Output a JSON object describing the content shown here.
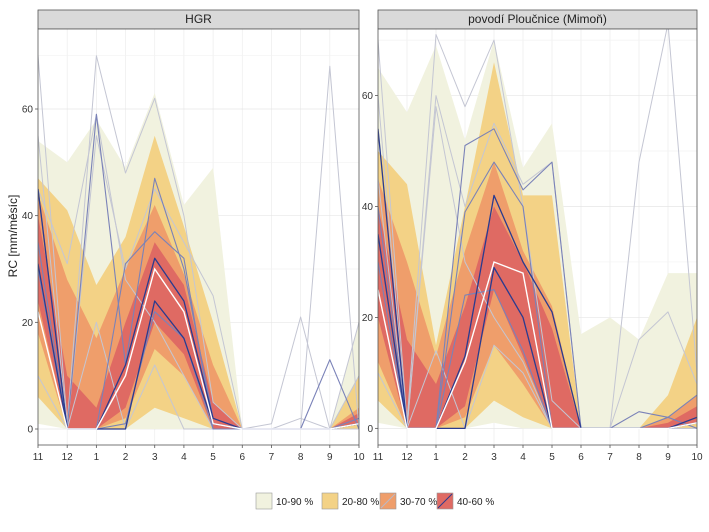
{
  "chart_data": {
    "type": "area",
    "ylabel": "RC [mm/měsíc]",
    "xlabel": "",
    "x_categories": [
      "11",
      "12",
      "1",
      "2",
      "3",
      "4",
      "5",
      "6",
      "7",
      "8",
      "9",
      "10"
    ],
    "legend": {
      "position": "bottom",
      "entries": [
        {
          "label": "10-90 %",
          "color": "#f1f2df"
        },
        {
          "label": "20-80 %",
          "color": "#f3d286"
        },
        {
          "label": "30-70 %",
          "color": "#ef9e6b"
        },
        {
          "label": "40-60 %",
          "color": "#df6a63"
        }
      ]
    },
    "colors": {
      "band_10_90": "#f1f2df",
      "band_20_80": "#f3d286",
      "band_30_70": "#ef9e6b",
      "band_40_60": "#df6a63",
      "strip_fill": "#d9d9d9",
      "median_line": "#ffffff",
      "gray_line": "#c4c6d3",
      "blue_line": "#7a82b8",
      "navy_line": "#2a3b8f"
    },
    "panels": [
      {
        "title": "HGR",
        "ylim": [
          -3,
          75
        ],
        "yticks": [
          0,
          20,
          40,
          60
        ],
        "bands": {
          "p10": [
            1,
            0,
            0,
            0,
            0,
            0,
            0,
            0,
            0,
            0,
            0,
            0
          ],
          "p90": [
            54,
            50,
            58,
            49,
            63,
            42,
            49,
            0,
            0,
            0,
            0,
            20
          ],
          "p20": [
            6,
            0,
            0,
            0,
            4,
            2,
            0,
            0,
            0,
            0,
            0,
            0
          ],
          "p80": [
            47,
            41,
            27,
            36,
            55,
            38,
            20,
            0,
            0,
            0,
            0,
            10
          ],
          "p30": [
            18,
            0,
            0,
            2,
            15,
            10,
            0,
            0,
            0,
            0,
            0,
            1
          ],
          "p70": [
            44,
            28,
            17,
            30,
            42,
            29,
            12,
            0,
            0,
            0,
            0,
            4
          ],
          "p40": [
            24,
            0,
            0,
            4,
            20,
            14,
            0,
            0,
            0,
            0,
            0,
            1
          ],
          "p60": [
            40,
            10,
            4,
            20,
            35,
            27,
            5,
            0,
            0,
            0,
            0,
            3
          ]
        },
        "median": [
          22,
          0,
          0,
          10,
          30,
          22,
          1,
          0,
          0,
          0,
          0,
          1
        ],
        "traces": [
          {
            "style": "gray",
            "values": [
              70,
              1,
              70,
              48,
              62,
              40,
              5,
              0,
              0,
              0,
              68,
              0
            ]
          },
          {
            "style": "gray",
            "values": [
              55,
              0,
              55,
              30,
              45,
              35,
              25,
              0,
              0,
              0,
              0,
              0
            ]
          },
          {
            "style": "gray",
            "values": [
              45,
              31,
              59,
              28,
              20,
              10,
              0,
              0,
              1,
              21,
              0,
              20
            ]
          },
          {
            "style": "gray",
            "values": [
              10,
              0,
              20,
              0,
              12,
              0,
              0,
              0,
              0,
              2,
              0,
              10
            ]
          },
          {
            "style": "blue",
            "values": [
              35,
              0,
              59,
              12,
              47,
              30,
              2,
              0,
              0,
              0,
              13,
              0
            ]
          },
          {
            "style": "blue",
            "values": [
              30,
              0,
              0,
              31,
              37,
              32,
              0,
              0,
              0,
              0,
              0,
              2
            ]
          },
          {
            "style": "blue",
            "values": [
              45,
              0,
              0,
              1,
              22,
              17,
              0,
              0,
              0,
              0,
              0,
              1
            ]
          },
          {
            "style": "navy",
            "values": [
              45,
              0,
              0,
              12,
              32,
              24,
              2,
              0,
              0,
              0,
              0,
              1
            ]
          },
          {
            "style": "navy",
            "values": [
              31,
              0,
              0,
              0,
              24,
              17,
              1,
              0,
              0,
              0,
              0,
              1
            ]
          }
        ]
      },
      {
        "title": "povodí Ploučnice (Mimoň)",
        "ylim": [
          -3,
          72
        ],
        "yticks": [
          0,
          20,
          40,
          60
        ],
        "bands": {
          "p10": [
            1,
            0,
            0,
            0,
            1,
            0,
            0,
            0,
            0,
            0,
            0,
            0
          ],
          "p90": [
            65,
            57,
            69,
            52,
            70,
            47,
            55,
            17,
            20,
            16,
            28,
            28
          ],
          "p20": [
            5,
            0,
            0,
            0,
            5,
            2,
            0,
            0,
            0,
            0,
            0,
            0
          ],
          "p80": [
            50,
            44,
            15,
            40,
            66,
            42,
            42,
            0,
            0,
            0,
            6,
            20
          ],
          "p30": [
            12,
            0,
            0,
            2,
            15,
            8,
            0,
            0,
            0,
            0,
            0,
            2
          ],
          "p70": [
            45,
            30,
            13,
            32,
            48,
            32,
            22,
            0,
            0,
            0,
            2,
            6
          ],
          "p40": [
            20,
            0,
            0,
            4,
            25,
            13,
            0,
            0,
            0,
            0,
            0,
            1
          ],
          "p60": [
            40,
            16,
            8,
            22,
            40,
            30,
            18,
            0,
            0,
            0,
            1,
            4
          ]
        },
        "median": [
          25,
          0,
          0,
          12,
          30,
          28,
          0,
          0,
          0,
          0,
          0,
          1
        ],
        "traces": [
          {
            "style": "gray",
            "values": [
              70,
              1,
              71,
              58,
              70,
              40,
              5,
              0,
              0,
              48,
              73,
              10
            ]
          },
          {
            "style": "gray",
            "values": [
              60,
              0,
              60,
              40,
              55,
              44,
              48,
              0,
              0,
              0,
              0,
              0
            ]
          },
          {
            "style": "gray",
            "values": [
              45,
              0,
              58,
              30,
              20,
              12,
              0,
              0,
              0,
              0,
              0,
              0
            ]
          },
          {
            "style": "gray",
            "values": [
              10,
              0,
              14,
              0,
              15,
              10,
              0,
              0,
              0,
              16,
              21,
              8
            ]
          },
          {
            "style": "blue",
            "values": [
              35,
              0,
              0,
              51,
              54,
              43,
              48,
              0,
              0,
              0,
              2,
              0
            ]
          },
          {
            "style": "blue",
            "values": [
              30,
              0,
              0,
              39,
              48,
              40,
              0,
              0,
              0,
              3,
              2,
              6
            ]
          },
          {
            "style": "blue",
            "values": [
              40,
              0,
              0,
              24,
              25,
              14,
              0,
              0,
              0,
              0,
              0,
              1
            ]
          },
          {
            "style": "navy",
            "values": [
              54,
              0,
              0,
              13,
              42,
              30,
              21,
              0,
              0,
              0,
              0,
              2
            ]
          },
          {
            "style": "navy",
            "values": [
              35,
              0,
              0,
              0,
              29,
              20,
              0,
              0,
              0,
              0,
              0,
              1
            ]
          }
        ]
      }
    ]
  }
}
